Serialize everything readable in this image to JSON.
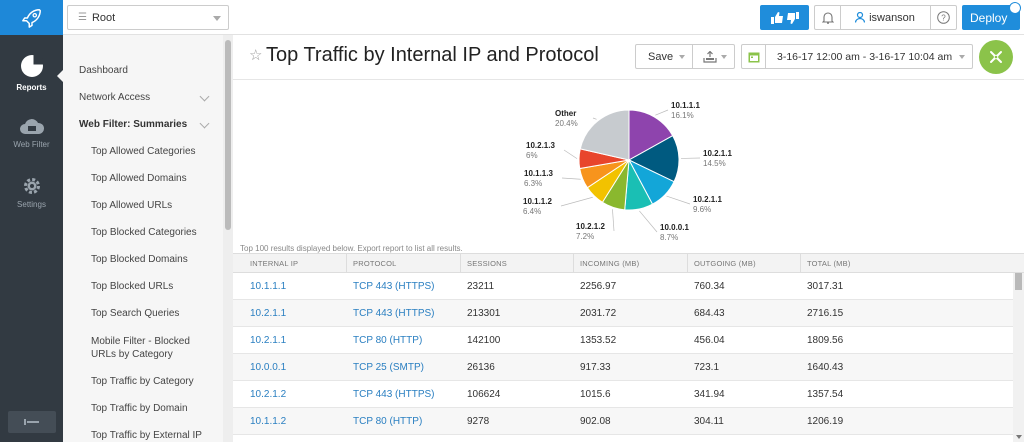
{
  "rail": {
    "items": [
      {
        "label": "Reports",
        "icon": "pie-chart-icon",
        "active": true
      },
      {
        "label": "Web Filter",
        "icon": "cloud-icon",
        "active": false
      },
      {
        "label": "Settings",
        "icon": "gear-icon",
        "active": false
      }
    ]
  },
  "topbar": {
    "root_label": "Root",
    "username": "iswanson",
    "deploy_label": "Deploy"
  },
  "nav": {
    "items": [
      {
        "label": "Dashboard"
      },
      {
        "label": "Network Access"
      },
      {
        "label": "Web Filter: Summaries"
      },
      {
        "label": "Top Allowed Categories"
      },
      {
        "label": "Top Allowed Domains"
      },
      {
        "label": "Top Allowed URLs"
      },
      {
        "label": "Top Blocked Categories"
      },
      {
        "label": "Top Blocked Domains"
      },
      {
        "label": "Top Blocked URLs"
      },
      {
        "label": "Top Search Queries"
      },
      {
        "label": "Mobile Filter - Blocked URLs by Category"
      },
      {
        "label": "Top Traffic by Category"
      },
      {
        "label": "Top Traffic by Domain"
      },
      {
        "label": "Top Traffic by External IP"
      }
    ]
  },
  "page": {
    "title": "Top Traffic by Internal IP and Protocol",
    "save_label": "Save",
    "date_range": "3-16-17 12:00 am - 3-16-17 10:04 am",
    "results_note": "Top 100 results displayed below. Export report to list all results."
  },
  "chart_data": {
    "type": "pie",
    "slices": [
      {
        "label": "10.1.1.1",
        "value": 16.1,
        "pct": "16.1%",
        "color": "#8e44ad"
      },
      {
        "label": "10.2.1.1",
        "value": 14.5,
        "pct": "14.5%",
        "color": "#005a80"
      },
      {
        "label": "10.2.1.1",
        "value": 9.6,
        "pct": "9.6%",
        "color": "#13a6d8"
      },
      {
        "label": "10.0.0.1",
        "value": 8.7,
        "pct": "8.7%",
        "color": "#1abfb4"
      },
      {
        "label": "10.2.1.2",
        "value": 7.2,
        "pct": "7.2%",
        "color": "#8ab82e"
      },
      {
        "label": "10.1.1.2",
        "value": 6.4,
        "pct": "6.4%",
        "color": "#f2c200"
      },
      {
        "label": "10.1.1.3",
        "value": 6.3,
        "pct": "6.3%",
        "color": "#f7941d"
      },
      {
        "label": "10.2.1.3",
        "value": 6.0,
        "pct": "6%",
        "color": "#e8452c"
      },
      {
        "label": "Other",
        "value": 20.4,
        "pct": "20.4%",
        "color": "#c7cbcf"
      }
    ]
  },
  "table": {
    "headers": [
      "Internal IP",
      "Protocol",
      "Sessions",
      "Incoming (MB)",
      "Outgoing (MB)",
      "Total (MB)"
    ],
    "rows": [
      [
        "10.1.1.1",
        "TCP 443 (HTTPS)",
        "23211",
        "2256.97",
        "760.34",
        "3017.31"
      ],
      [
        "10.2.1.1",
        "TCP 443 (HTTPS)",
        "213301",
        "2031.72",
        "684.43",
        "2716.15"
      ],
      [
        "10.2.1.1",
        "TCP 80 (HTTP)",
        "142100",
        "1353.52",
        "456.04",
        "1809.56"
      ],
      [
        "10.0.0.1",
        "TCP 25 (SMTP)",
        "26136",
        "917.33",
        "723.1",
        "1640.43"
      ],
      [
        "10.2.1.2",
        "TCP 443 (HTTPS)",
        "106624",
        "1015.6",
        "341.94",
        "1357.54"
      ],
      [
        "10.1.1.2",
        "TCP 80 (HTTP)",
        "9278",
        "902.08",
        "304.11",
        "1206.19"
      ]
    ]
  }
}
